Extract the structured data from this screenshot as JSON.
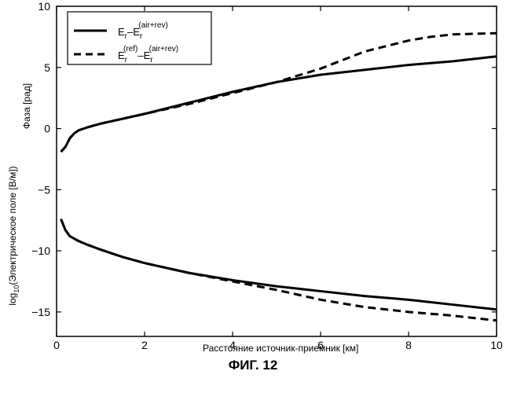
{
  "figure_caption": "ФИГ. 12",
  "chart_data": {
    "type": "line",
    "xlabel": "Расстояние источник-приемник [км]",
    "ylabel_phase": "Фаза [рад]",
    "ylabel_field_prefix": "log",
    "ylabel_field_sub": "10",
    "ylabel_field_rest": "(Электрическое поле [В/м])",
    "xlim": [
      0,
      10
    ],
    "ylim": [
      -17,
      10
    ],
    "xticks": [
      0,
      2,
      4,
      6,
      8,
      10
    ],
    "yticks": [
      10,
      5,
      0,
      -5,
      -10,
      -15
    ],
    "grid": false,
    "legend_position": "top-left",
    "legend": [
      {
        "style": "solid",
        "base1": "E",
        "sub1": "r",
        "dash_sep": "–",
        "base2": "E",
        "sub2": "r",
        "sup2": "(air+rev)"
      },
      {
        "style": "dashed",
        "base1": "E",
        "sub1": "r",
        "sup1": "(ref)",
        "dash_sep": "–",
        "base2": "E",
        "sub2": "r",
        "sup2": "(air+rev)"
      }
    ],
    "series": [
      {
        "group": "phase",
        "style": "solid",
        "x": [
          0.1,
          0.2,
          0.3,
          0.4,
          0.5,
          0.7,
          1.0,
          1.5,
          2.0,
          3.0,
          4.0,
          5.0,
          6.0,
          7.0,
          8.0,
          9.0,
          10.0
        ],
        "y": [
          -1.9,
          -1.5,
          -0.8,
          -0.4,
          -0.15,
          0.1,
          0.4,
          0.8,
          1.2,
          2.1,
          3.0,
          3.8,
          4.4,
          4.8,
          5.2,
          5.5,
          5.9
        ]
      },
      {
        "group": "phase",
        "style": "dashed",
        "x": [
          0.1,
          0.2,
          0.3,
          0.4,
          0.5,
          0.7,
          1.0,
          1.5,
          2.0,
          3.0,
          4.0,
          5.0,
          6.0,
          6.5,
          7.0,
          8.0,
          8.5,
          9.0,
          10.0
        ],
        "y": [
          -1.9,
          -1.5,
          -0.8,
          -0.4,
          -0.15,
          0.1,
          0.4,
          0.8,
          1.2,
          2.0,
          2.9,
          3.8,
          4.9,
          5.6,
          6.3,
          7.2,
          7.5,
          7.7,
          7.8
        ]
      },
      {
        "group": "field",
        "style": "solid",
        "x": [
          0.1,
          0.2,
          0.3,
          0.5,
          0.7,
          1.0,
          1.5,
          2.0,
          3.0,
          4.0,
          5.0,
          6.0,
          7.0,
          8.0,
          9.0,
          10.0
        ],
        "y": [
          -7.4,
          -8.3,
          -8.8,
          -9.2,
          -9.5,
          -9.9,
          -10.5,
          -11.0,
          -11.8,
          -12.4,
          -12.9,
          -13.3,
          -13.7,
          -14.0,
          -14.4,
          -14.8
        ]
      },
      {
        "group": "field",
        "style": "dashed",
        "x": [
          0.1,
          0.2,
          0.3,
          0.5,
          0.7,
          1.0,
          1.5,
          2.0,
          3.0,
          4.0,
          5.0,
          6.0,
          7.0,
          8.0,
          9.0,
          10.0
        ],
        "y": [
          -7.4,
          -8.3,
          -8.8,
          -9.2,
          -9.5,
          -9.9,
          -10.5,
          -11.0,
          -11.8,
          -12.5,
          -13.2,
          -14.0,
          -14.6,
          -15.0,
          -15.3,
          -15.7
        ]
      }
    ]
  }
}
